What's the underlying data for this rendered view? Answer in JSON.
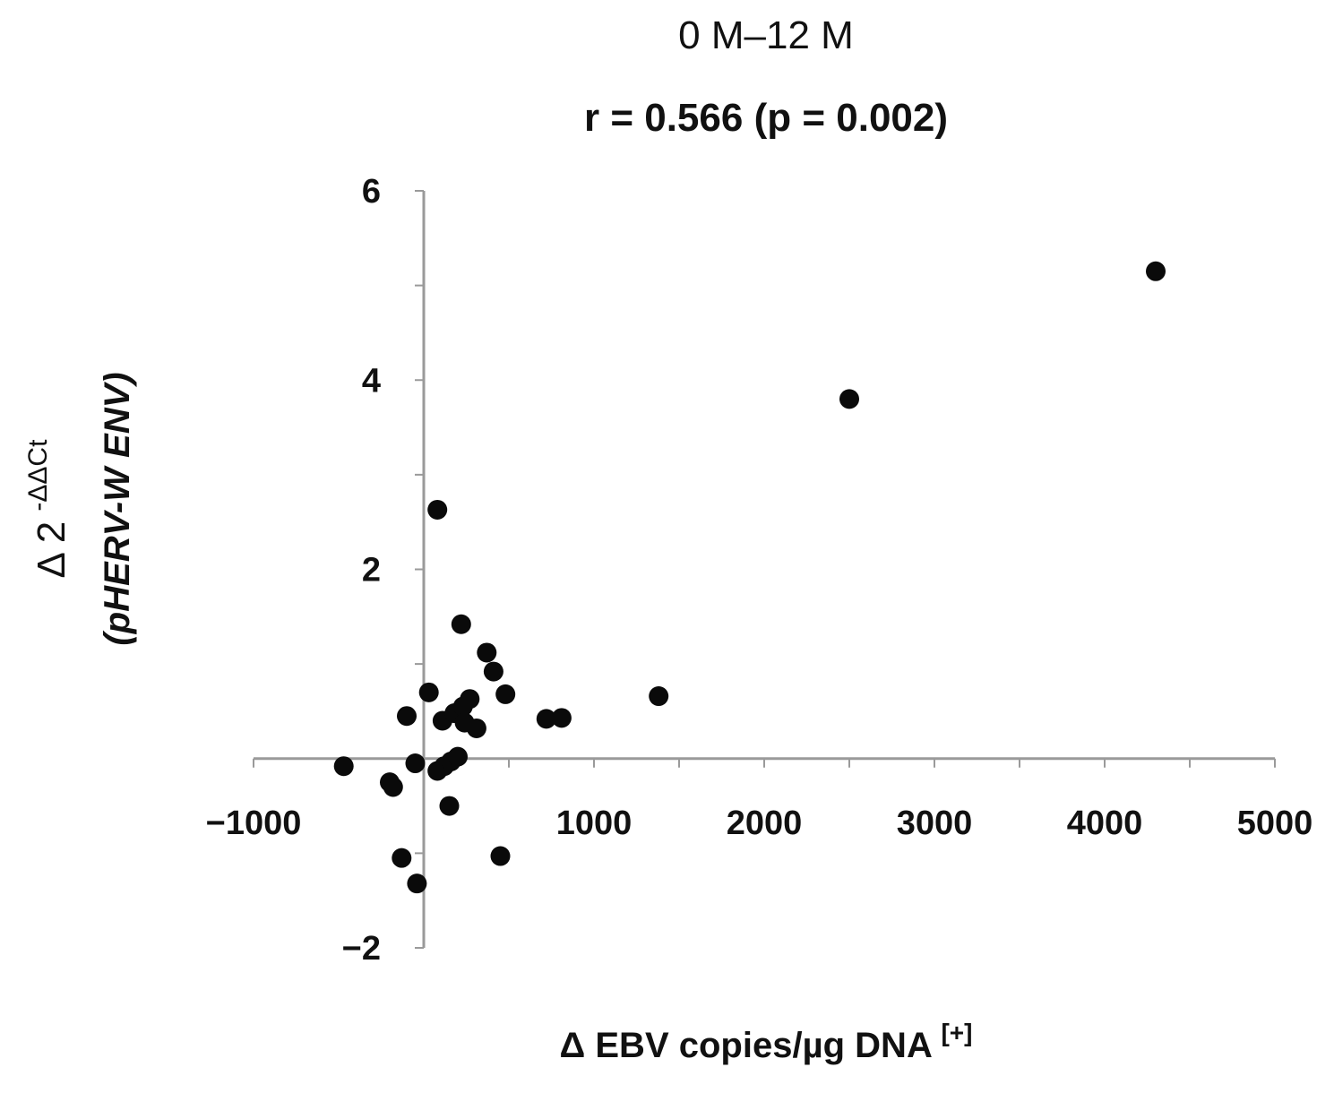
{
  "chart_data": {
    "type": "scatter",
    "title": "0 M–12 M",
    "subtitle": "r = 0.566 (p = 0.002)",
    "xlabel": {
      "main": "Δ EBV copies/µg DNA",
      "superscript": "[+]"
    },
    "ylabel": {
      "line1_main": "Δ 2",
      "line1_superscript": "-ΔΔCt",
      "line2": "(pHERV-W ENV)"
    },
    "xlim": [
      -1000,
      5000
    ],
    "ylim": [
      -2,
      6
    ],
    "x_ticks": [
      -1000,
      0,
      1000,
      2000,
      3000,
      4000,
      5000
    ],
    "x_tick_labels": [
      "−1000",
      "",
      "1000",
      "2000",
      "3000",
      "4000",
      "5000"
    ],
    "x_minor_step": 500,
    "y_ticks": [
      -2,
      0,
      2,
      4,
      6
    ],
    "y_tick_labels": [
      "−2",
      "",
      "2",
      "4",
      "6"
    ],
    "y_minor_step": 1,
    "grid": false,
    "points": [
      {
        "x": -470,
        "y": -0.08
      },
      {
        "x": -200,
        "y": -0.25
      },
      {
        "x": -180,
        "y": -0.3
      },
      {
        "x": -130,
        "y": -1.05
      },
      {
        "x": -100,
        "y": 0.45
      },
      {
        "x": -50,
        "y": -0.05
      },
      {
        "x": -40,
        "y": -1.32
      },
      {
        "x": 30,
        "y": 0.7
      },
      {
        "x": 80,
        "y": 2.63
      },
      {
        "x": 80,
        "y": -0.13
      },
      {
        "x": 110,
        "y": 0.4
      },
      {
        "x": 120,
        "y": -0.08
      },
      {
        "x": 150,
        "y": -0.5
      },
      {
        "x": 160,
        "y": -0.03
      },
      {
        "x": 180,
        "y": 0.48
      },
      {
        "x": 200,
        "y": 0.02
      },
      {
        "x": 220,
        "y": 1.42
      },
      {
        "x": 230,
        "y": 0.55
      },
      {
        "x": 240,
        "y": 0.38
      },
      {
        "x": 270,
        "y": 0.63
      },
      {
        "x": 310,
        "y": 0.32
      },
      {
        "x": 370,
        "y": 1.12
      },
      {
        "x": 410,
        "y": 0.92
      },
      {
        "x": 450,
        "y": -1.03
      },
      {
        "x": 480,
        "y": 0.68
      },
      {
        "x": 720,
        "y": 0.42
      },
      {
        "x": 810,
        "y": 0.43
      },
      {
        "x": 1380,
        "y": 0.66
      },
      {
        "x": 2500,
        "y": 3.8
      },
      {
        "x": 4300,
        "y": 5.15
      }
    ]
  }
}
